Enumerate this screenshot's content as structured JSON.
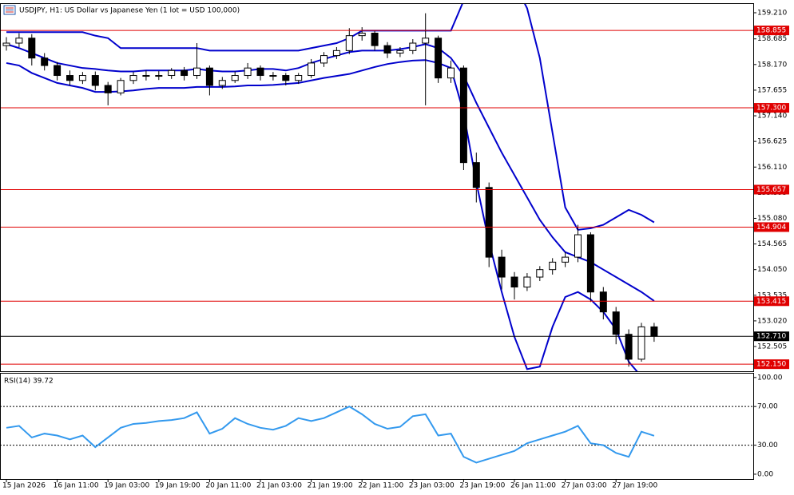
{
  "chart_data": [
    {
      "type": "candlestick",
      "title": "USDJPY, H1:  US Dollar vs Japanese Yen (1 lot = USD 100,000)",
      "categories": [
        "15 Jan 2026",
        null,
        null,
        null,
        "16 Jan 11:00",
        null,
        null,
        null,
        "19 Jan 03:00",
        null,
        null,
        null,
        "19 Jan 19:00",
        null,
        null,
        null,
        "20 Jan 11:00",
        null,
        null,
        null,
        "21 Jan 03:00",
        null,
        null,
        null,
        "21 Jan 19:00",
        null,
        null,
        null,
        "22 Jan 11:00",
        null,
        null,
        null,
        "23 Jan 03:00",
        null,
        null,
        null,
        "23 Jan 19:00",
        null,
        null,
        null,
        "26 Jan 11:00",
        null,
        null,
        null,
        "27 Jan 03:00",
        null,
        null,
        null,
        "27 Jan 19:00",
        null,
        null,
        null
      ],
      "open": [
        158.55,
        158.6,
        158.7,
        158.3,
        158.15,
        157.95,
        157.85,
        157.95,
        157.75,
        157.6,
        157.85,
        157.95,
        157.95,
        157.95,
        158.05,
        157.95,
        158.1,
        157.75,
        157.85,
        157.95,
        158.1,
        157.95,
        157.95,
        157.85,
        157.95,
        158.2,
        158.35,
        158.45,
        158.75,
        158.8,
        158.55,
        158.4,
        158.45,
        158.6,
        158.7,
        157.9,
        158.1,
        156.2,
        155.7,
        154.3,
        153.9,
        153.7,
        153.9,
        154.05,
        154.2,
        154.3,
        154.75,
        153.6,
        153.2,
        152.75,
        152.25,
        152.9
      ],
      "high": [
        158.72,
        158.8,
        158.78,
        158.4,
        158.22,
        158.05,
        158.02,
        158.03,
        157.82,
        157.9,
        158.02,
        158.05,
        158.04,
        158.1,
        158.12,
        158.6,
        158.15,
        157.92,
        158.03,
        158.2,
        158.15,
        158.02,
        158.0,
        158.0,
        158.28,
        158.42,
        158.52,
        158.9,
        158.92,
        158.85,
        158.62,
        158.52,
        158.68,
        159.2,
        158.75,
        158.25,
        158.15,
        156.4,
        155.8,
        154.45,
        154.0,
        153.98,
        154.12,
        154.28,
        154.4,
        154.95,
        154.8,
        153.7,
        153.3,
        152.85,
        152.98,
        152.98
      ],
      "low": [
        158.45,
        158.52,
        158.15,
        158.05,
        157.85,
        157.75,
        157.78,
        157.65,
        157.35,
        157.55,
        157.78,
        157.85,
        157.86,
        157.88,
        157.85,
        157.88,
        157.55,
        157.68,
        157.8,
        157.88,
        157.85,
        157.85,
        157.75,
        157.78,
        157.9,
        158.12,
        158.28,
        158.38,
        158.65,
        158.45,
        158.3,
        158.32,
        158.38,
        157.35,
        157.8,
        157.8,
        156.05,
        155.4,
        154.1,
        153.65,
        153.45,
        153.62,
        153.82,
        153.95,
        154.1,
        154.2,
        153.4,
        153.05,
        152.55,
        152.1,
        152.2,
        152.6
      ],
      "close": [
        158.6,
        158.7,
        158.3,
        158.15,
        157.95,
        157.85,
        157.95,
        157.75,
        157.6,
        157.85,
        157.95,
        157.95,
        157.95,
        158.05,
        157.95,
        158.1,
        157.75,
        157.85,
        157.95,
        158.1,
        157.95,
        157.95,
        157.85,
        157.95,
        158.2,
        158.35,
        158.45,
        158.75,
        158.8,
        158.55,
        158.4,
        158.45,
        158.6,
        158.7,
        157.9,
        158.1,
        156.2,
        155.7,
        154.3,
        153.9,
        153.7,
        153.9,
        154.05,
        154.2,
        154.3,
        154.75,
        153.6,
        153.2,
        152.75,
        152.25,
        152.9,
        152.71
      ],
      "up_color": "#ffffff",
      "down_color": "#000000",
      "wick_color": "#000000",
      "bollinger": {
        "color": "#0000cc",
        "upper": [
          158.82,
          158.82,
          158.82,
          158.82,
          158.82,
          158.82,
          158.82,
          158.75,
          158.7,
          158.5,
          158.5,
          158.5,
          158.5,
          158.5,
          158.5,
          158.5,
          158.45,
          158.45,
          158.45,
          158.45,
          158.45,
          158.45,
          158.45,
          158.45,
          158.5,
          158.55,
          158.6,
          158.7,
          158.85,
          158.85,
          158.85,
          158.85,
          158.85,
          158.85,
          158.85,
          158.85,
          159.45,
          159.9,
          160.2,
          160.2,
          159.8,
          159.3,
          158.3,
          156.8,
          155.3,
          154.85,
          154.88,
          154.95,
          155.1,
          155.25,
          155.15,
          155.0
        ],
        "middle": [
          158.58,
          158.5,
          158.4,
          158.3,
          158.2,
          158.15,
          158.1,
          158.08,
          158.05,
          158.03,
          158.03,
          158.05,
          158.05,
          158.05,
          158.05,
          158.08,
          158.05,
          158.03,
          158.03,
          158.05,
          158.08,
          158.08,
          158.05,
          158.1,
          158.2,
          158.28,
          158.35,
          158.42,
          158.45,
          158.45,
          158.45,
          158.48,
          158.52,
          158.58,
          158.5,
          158.3,
          157.95,
          157.4,
          156.9,
          156.4,
          155.95,
          155.5,
          155.05,
          154.7,
          154.4,
          154.3,
          154.2,
          154.05,
          153.9,
          153.75,
          153.6,
          153.42
        ],
        "lower": [
          158.2,
          158.15,
          158.0,
          157.9,
          157.8,
          157.75,
          157.7,
          157.62,
          157.62,
          157.63,
          157.65,
          157.68,
          157.7,
          157.7,
          157.7,
          157.72,
          157.72,
          157.72,
          157.73,
          157.75,
          157.75,
          157.76,
          157.78,
          157.8,
          157.85,
          157.9,
          157.94,
          157.98,
          158.05,
          158.12,
          158.18,
          158.22,
          158.25,
          158.26,
          158.2,
          158.1,
          157.2,
          155.8,
          154.6,
          153.6,
          152.7,
          152.05,
          152.1,
          152.9,
          153.5,
          153.6,
          153.45,
          153.2,
          152.85,
          152.2,
          151.9,
          151.7
        ]
      },
      "levels": [
        {
          "value": 158.855,
          "label": "158.855"
        },
        {
          "value": 157.3,
          "label": "157.300"
        },
        {
          "value": 155.657,
          "label": "155.657"
        },
        {
          "value": 154.904,
          "label": "154.904"
        },
        {
          "value": 153.415,
          "label": "153.415"
        },
        {
          "value": 152.15,
          "label": "152.150"
        }
      ],
      "level_color": "#e00000",
      "current": {
        "value": 152.71,
        "label": "152.710"
      },
      "ylim": [
        152.008,
        159.386
      ],
      "yticks": [
        {
          "value": 159.21,
          "label": "159.210"
        },
        {
          "value": 158.685,
          "label": "158.685"
        },
        {
          "value": 158.17,
          "label": "158.170"
        },
        {
          "value": 157.655,
          "label": "157.655"
        },
        {
          "value": 157.14,
          "label": "157.140"
        },
        {
          "value": 156.625,
          "label": "156.625"
        },
        {
          "value": 156.11,
          "label": "156.110"
        },
        {
          "value": 155.595,
          "label": "155.595"
        },
        {
          "value": 155.08,
          "label": "155.080"
        },
        {
          "value": 154.565,
          "label": "154.565"
        },
        {
          "value": 154.05,
          "label": "154.050"
        },
        {
          "value": 153.535,
          "label": "153.535"
        },
        {
          "value": 153.02,
          "label": "153.020"
        },
        {
          "value": 152.505,
          "label": "152.505"
        }
      ]
    },
    {
      "type": "line",
      "title": "RSI(14) 39.72",
      "color": "#3399ee",
      "values": [
        48,
        50,
        38,
        42,
        40,
        36,
        40,
        28,
        38,
        48,
        52,
        53,
        55,
        56,
        58,
        64,
        42,
        47,
        58,
        52,
        48,
        46,
        50,
        58,
        55,
        58,
        64,
        70,
        62,
        52,
        47,
        49,
        60,
        62,
        40,
        42,
        18,
        12,
        16,
        20,
        24,
        32,
        36,
        40,
        44,
        50,
        32,
        30,
        22,
        18,
        44,
        39.72
      ],
      "ylim": [
        -5,
        104
      ],
      "yticks": [
        {
          "value": 100,
          "label": "100.00"
        },
        {
          "value": 70,
          "label": "70.00"
        },
        {
          "value": 30,
          "label": "30.00"
        },
        {
          "value": 0,
          "label": "0.00"
        }
      ],
      "dotted_levels": [
        70,
        30
      ]
    }
  ]
}
